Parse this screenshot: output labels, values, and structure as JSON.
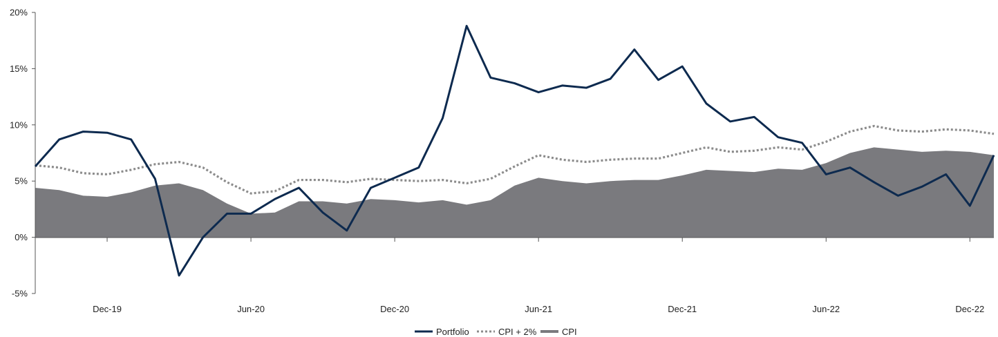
{
  "chart_data": {
    "type": "line",
    "title": "",
    "xlabel": "",
    "ylabel": "",
    "ylim": [
      -5,
      20
    ],
    "y_ticks": [
      "20%",
      "15%",
      "10%",
      "5%",
      "0%",
      "-5%"
    ],
    "x_tick_labels": [
      "Dec-19",
      "Jun-20",
      "Dec-20",
      "Jun-21",
      "Dec-21",
      "Jun-22",
      "Dec-22"
    ],
    "x": [
      "Sep-19",
      "Oct-19",
      "Nov-19",
      "Dec-19",
      "Jan-20",
      "Feb-20",
      "Mar-20",
      "Apr-20",
      "May-20",
      "Jun-20",
      "Jul-20",
      "Aug-20",
      "Sep-20",
      "Oct-20",
      "Nov-20",
      "Dec-20",
      "Jan-21",
      "Feb-21",
      "Mar-21",
      "Apr-21",
      "May-21",
      "Jun-21",
      "Jul-21",
      "Aug-21",
      "Sep-21",
      "Oct-21",
      "Nov-21",
      "Dec-21",
      "Jan-22",
      "Feb-22",
      "Mar-22",
      "Apr-22",
      "May-22",
      "Jun-22",
      "Jul-22",
      "Aug-22",
      "Sep-22",
      "Oct-22",
      "Nov-22",
      "Dec-22",
      "Jan-23"
    ],
    "series": [
      {
        "name": "Portfolio",
        "style": "solid",
        "color": "#0d2a4f",
        "values": [
          6.3,
          8.7,
          9.4,
          9.3,
          8.7,
          5.2,
          -3.4,
          0,
          2.1,
          2.1,
          3.4,
          4.4,
          2.2,
          0.6,
          4.4,
          5.3,
          6.2,
          10.6,
          18.8,
          14.2,
          13.7,
          12.9,
          13.5,
          13.3,
          14.1,
          16.7,
          14.0,
          15.2,
          11.9,
          10.3,
          10.7,
          8.9,
          8.4,
          5.6,
          6.2,
          4.9,
          3.7,
          4.5,
          5.6,
          2.8,
          7.3
        ]
      },
      {
        "name": "CPI + 2%",
        "style": "dotted",
        "color": "#8c8c8c",
        "values": [
          6.4,
          6.2,
          5.7,
          5.6,
          6.0,
          6.5,
          6.7,
          6.2,
          4.9,
          3.9,
          4.1,
          5.1,
          5.1,
          4.9,
          5.2,
          5.1,
          5.0,
          5.1,
          4.8,
          5.2,
          6.3,
          7.3,
          6.9,
          6.7,
          6.9,
          7.0,
          7.0,
          7.5,
          8.0,
          7.6,
          7.7,
          8.0,
          7.8,
          8.5,
          9.4,
          9.9,
          9.5,
          9.4,
          9.6,
          9.5,
          9.2
        ]
      },
      {
        "name": "CPI",
        "style": "area",
        "color": "#7a7a7e",
        "values": [
          4.4,
          4.2,
          3.7,
          3.6,
          4.0,
          4.6,
          4.8,
          4.2,
          3.0,
          2.1,
          2.2,
          3.2,
          3.2,
          3.0,
          3.4,
          3.3,
          3.1,
          3.3,
          2.9,
          3.3,
          4.6,
          5.3,
          5.0,
          4.8,
          5.0,
          5.1,
          5.1,
          5.5,
          6.0,
          5.9,
          5.8,
          6.1,
          6.0,
          6.6,
          7.5,
          8.0,
          7.8,
          7.6,
          7.7,
          7.6,
          7.3
        ]
      }
    ],
    "legend": {
      "position": "bottom-center",
      "items": [
        "Portfolio",
        "CPI + 2%",
        "CPI"
      ]
    },
    "grid": false
  }
}
